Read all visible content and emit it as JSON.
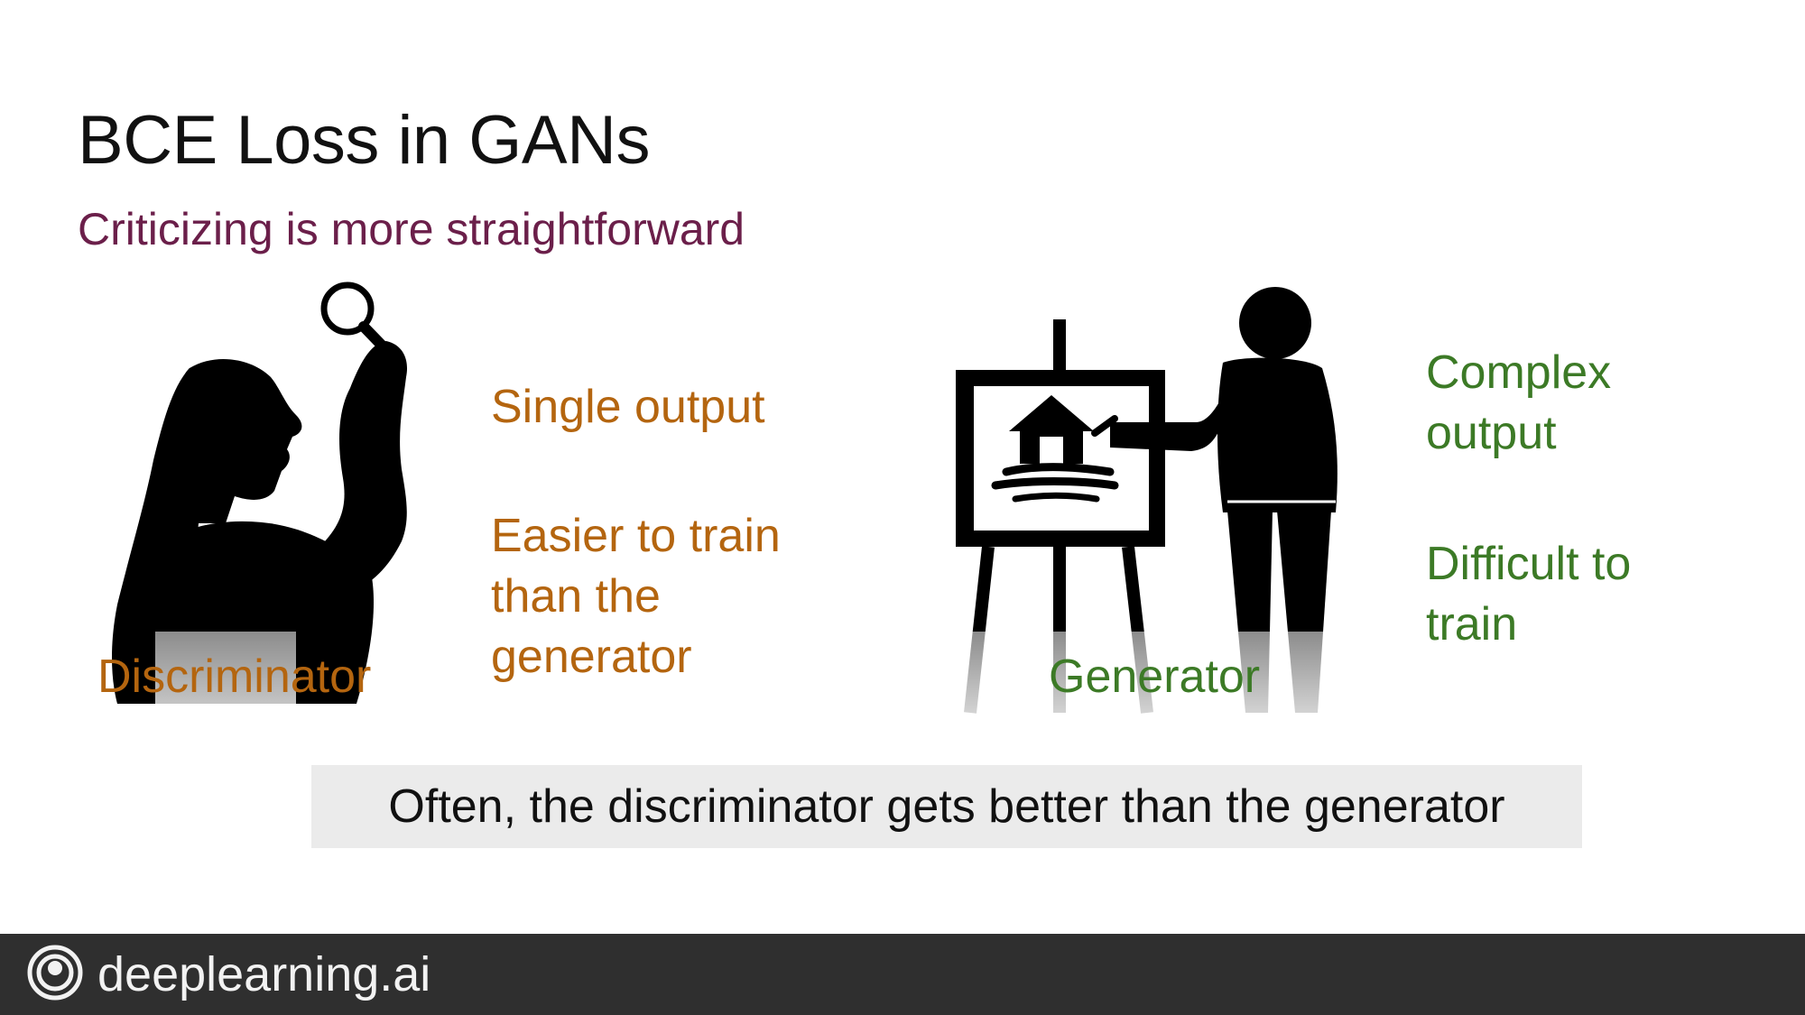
{
  "slide": {
    "title": "BCE Loss in GANs",
    "subtitle": "Criticizing is more straightforward"
  },
  "discriminator": {
    "label": "Discriminator",
    "points": [
      "Single output",
      "Easier to train than the generator"
    ],
    "icon": "person-with-magnifier-icon",
    "color": "#b4650f"
  },
  "generator": {
    "label": "Generator",
    "points": [
      "Complex output",
      "Difficult to train"
    ],
    "icon": "painter-at-easel-icon",
    "color": "#3c7a26"
  },
  "note": "Often, the discriminator gets better than the generator",
  "footer": {
    "brand": "deeplearning.ai",
    "icon": "deeplearning-logo-icon"
  },
  "colors": {
    "subtitle": "#6b1f4a",
    "footer_bg": "#2f2f2f",
    "note_bg": "#ebebeb"
  }
}
